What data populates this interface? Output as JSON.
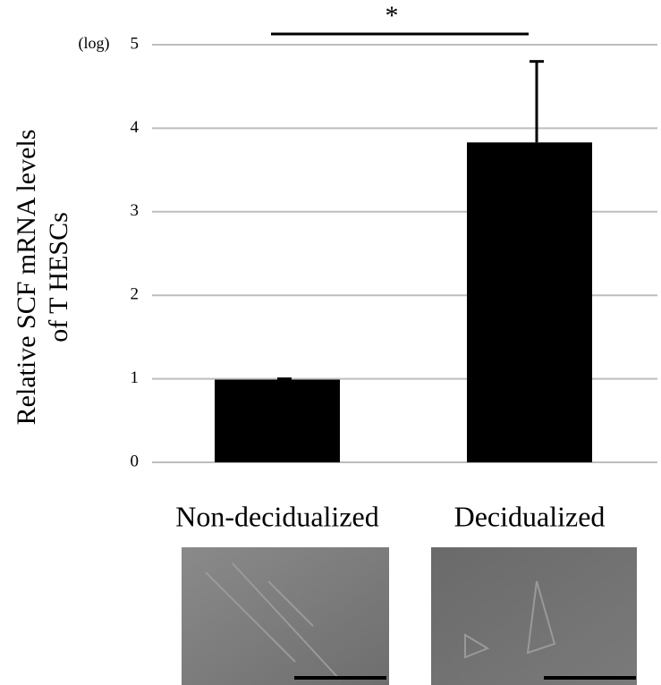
{
  "chart_data": {
    "type": "bar",
    "y_label": [
      "Relative SCF mRNA levels",
      "of T HESCs"
    ],
    "axis_note": "(log)",
    "annotation": "*",
    "categories": [
      "Non-decidualized",
      "Decidualized"
    ],
    "values": [
      0.99,
      3.83
    ],
    "errors": [
      0.01,
      0.97
    ],
    "color": "#000000",
    "ylim": [
      0,
      5
    ],
    "yticks": [
      0,
      1,
      2,
      3,
      4,
      5
    ],
    "grid": true
  }
}
